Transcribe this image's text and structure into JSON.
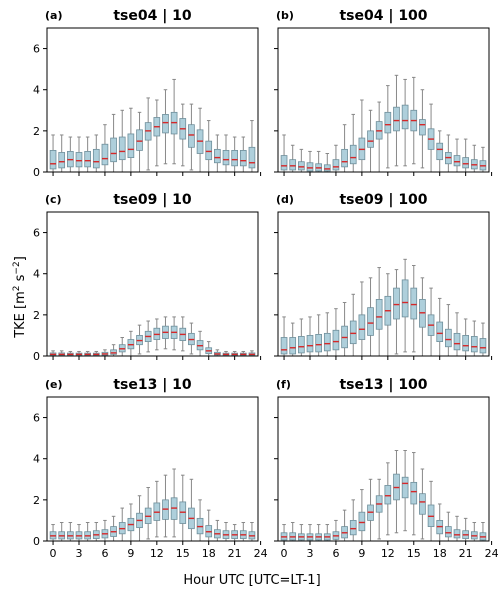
{
  "figure": {
    "ylabel_main": "TKE [m",
    "ylabel_sup1": "2",
    "ylabel_mid": " s",
    "ylabel_sup2": "−2",
    "ylabel_end": "]",
    "xlabel": "Hour UTC [UTC=LT-1]"
  },
  "colors": {
    "box_fill": "#aecfdb",
    "box_edge": "#6f8f9b",
    "median": "#d62728",
    "whisker": "#888888"
  },
  "chart_data": [
    {
      "type": "boxplot",
      "label": "(a)",
      "title": "tse04 | 10",
      "x": [
        0,
        1,
        2,
        3,
        4,
        5,
        6,
        7,
        8,
        9,
        10,
        11,
        12,
        13,
        14,
        15,
        16,
        17,
        18,
        19,
        20,
        21,
        22,
        23
      ],
      "xticks": [
        0,
        3,
        6,
        9,
        12,
        15,
        18,
        21,
        24
      ],
      "yticks": [
        0,
        2,
        4,
        6
      ],
      "ylim": [
        0,
        7
      ],
      "xlim": [
        -0.7,
        23.7
      ],
      "median": [
        0.4,
        0.5,
        0.6,
        0.55,
        0.55,
        0.5,
        0.65,
        0.9,
        1.0,
        1.1,
        1.5,
        2.0,
        2.2,
        2.4,
        2.4,
        2.1,
        1.8,
        1.5,
        1.0,
        0.7,
        0.6,
        0.6,
        0.55,
        0.45
      ],
      "q1": [
        0.15,
        0.2,
        0.25,
        0.25,
        0.25,
        0.2,
        0.35,
        0.5,
        0.6,
        0.7,
        1.05,
        1.55,
        1.75,
        1.9,
        1.85,
        1.6,
        1.2,
        0.9,
        0.6,
        0.45,
        0.35,
        0.3,
        0.3,
        0.2
      ],
      "q3": [
        1.05,
        0.95,
        1.0,
        0.95,
        1.0,
        1.1,
        1.35,
        1.65,
        1.7,
        1.85,
        2.05,
        2.4,
        2.65,
        2.8,
        2.9,
        2.6,
        2.3,
        2.05,
        1.5,
        1.1,
        1.05,
        1.05,
        1.05,
        1.2
      ],
      "whislo": [
        0,
        0,
        0,
        0,
        0,
        0,
        0,
        0,
        0,
        0,
        0,
        0.1,
        0.3,
        0.4,
        0.4,
        0.3,
        0.1,
        0,
        0,
        0,
        0,
        0,
        0,
        0
      ],
      "whishi": [
        1.8,
        1.8,
        1.7,
        1.7,
        1.7,
        1.8,
        2.3,
        2.8,
        3.0,
        3.1,
        2.9,
        3.6,
        3.5,
        4.0,
        4.5,
        3.3,
        3.3,
        3.1,
        2.5,
        1.8,
        1.8,
        1.7,
        1.7,
        2.5
      ]
    },
    {
      "type": "boxplot",
      "label": "(b)",
      "title": "tse04 | 100",
      "x": [
        0,
        1,
        2,
        3,
        4,
        5,
        6,
        7,
        8,
        9,
        10,
        11,
        12,
        13,
        14,
        15,
        16,
        17,
        18,
        19,
        20,
        21,
        22,
        23
      ],
      "xticks": [
        0,
        3,
        6,
        9,
        12,
        15,
        18,
        21,
        24
      ],
      "yticks": [
        0,
        2,
        4,
        6
      ],
      "ylim": [
        0,
        7
      ],
      "xlim": [
        -0.7,
        23.7
      ],
      "median": [
        0.3,
        0.3,
        0.25,
        0.2,
        0.2,
        0.15,
        0.25,
        0.5,
        0.7,
        1.1,
        1.5,
        2.0,
        2.3,
        2.5,
        2.5,
        2.5,
        2.3,
        1.6,
        1.1,
        0.7,
        0.5,
        0.4,
        0.35,
        0.3
      ],
      "q1": [
        0.1,
        0.1,
        0.1,
        0.05,
        0.05,
        0.05,
        0.1,
        0.25,
        0.4,
        0.6,
        1.2,
        1.6,
        1.9,
        2.0,
        2.1,
        2.0,
        1.8,
        1.1,
        0.6,
        0.4,
        0.3,
        0.2,
        0.15,
        0.1
      ],
      "q3": [
        0.8,
        0.6,
        0.5,
        0.45,
        0.4,
        0.35,
        0.6,
        1.1,
        1.3,
        1.65,
        2.0,
        2.45,
        2.9,
        3.15,
        3.25,
        3.0,
        2.55,
        2.1,
        1.4,
        0.95,
        0.8,
        0.7,
        0.6,
        0.55
      ],
      "whislo": [
        0,
        0,
        0,
        0,
        0,
        0,
        0,
        0,
        0,
        0,
        0,
        0,
        0.2,
        0.3,
        0.3,
        0.4,
        0.2,
        0,
        0,
        0,
        0,
        0,
        0,
        0
      ],
      "whishi": [
        1.8,
        1.3,
        1.1,
        1.0,
        1.0,
        0.9,
        1.3,
        2.3,
        2.8,
        3.5,
        3.0,
        3.4,
        4.2,
        4.7,
        4.5,
        4.6,
        4.0,
        3.3,
        2.0,
        1.8,
        1.6,
        1.6,
        1.3,
        1.2
      ]
    },
    {
      "type": "boxplot",
      "label": "(c)",
      "title": "tse09 | 10",
      "x": [
        0,
        1,
        2,
        3,
        4,
        5,
        6,
        7,
        8,
        9,
        10,
        11,
        12,
        13,
        14,
        15,
        16,
        17,
        18,
        19,
        20,
        21,
        22,
        23
      ],
      "xticks": [
        0,
        3,
        6,
        9,
        12,
        15,
        18,
        21,
        24
      ],
      "yticks": [
        0,
        2,
        4,
        6
      ],
      "ylim": [
        0,
        7
      ],
      "xlim": [
        -0.7,
        23.7
      ],
      "median": [
        0.08,
        0.08,
        0.08,
        0.08,
        0.08,
        0.08,
        0.1,
        0.15,
        0.35,
        0.55,
        0.75,
        0.95,
        1.05,
        1.15,
        1.15,
        1.05,
        0.8,
        0.5,
        0.25,
        0.1,
        0.08,
        0.08,
        0.08,
        0.08
      ],
      "q1": [
        0.03,
        0.03,
        0.03,
        0.03,
        0.03,
        0.03,
        0.04,
        0.08,
        0.2,
        0.35,
        0.55,
        0.7,
        0.8,
        0.85,
        0.85,
        0.75,
        0.55,
        0.3,
        0.12,
        0.05,
        0.03,
        0.03,
        0.03,
        0.03
      ],
      "q3": [
        0.15,
        0.15,
        0.14,
        0.14,
        0.14,
        0.14,
        0.18,
        0.3,
        0.55,
        0.8,
        1.0,
        1.2,
        1.35,
        1.45,
        1.45,
        1.35,
        1.1,
        0.75,
        0.4,
        0.18,
        0.14,
        0.14,
        0.14,
        0.15
      ],
      "whislo": [
        0,
        0,
        0,
        0,
        0,
        0,
        0,
        0,
        0,
        0,
        0.1,
        0.2,
        0.3,
        0.35,
        0.3,
        0.25,
        0.1,
        0,
        0,
        0,
        0,
        0,
        0,
        0
      ],
      "whishi": [
        0.25,
        0.25,
        0.22,
        0.22,
        0.22,
        0.22,
        0.3,
        0.55,
        0.9,
        1.2,
        1.5,
        1.7,
        1.8,
        1.9,
        1.9,
        1.9,
        1.6,
        1.2,
        0.7,
        0.3,
        0.22,
        0.22,
        0.22,
        0.25
      ]
    },
    {
      "type": "boxplot",
      "label": "(d)",
      "title": "tse09 | 100",
      "x": [
        0,
        1,
        2,
        3,
        4,
        5,
        6,
        7,
        8,
        9,
        10,
        11,
        12,
        13,
        14,
        15,
        16,
        17,
        18,
        19,
        20,
        21,
        22,
        23
      ],
      "xticks": [
        0,
        3,
        6,
        9,
        12,
        15,
        18,
        21,
        24
      ],
      "yticks": [
        0,
        2,
        4,
        6
      ],
      "ylim": [
        0,
        7
      ],
      "xlim": [
        -0.7,
        23.7
      ],
      "median": [
        0.3,
        0.4,
        0.45,
        0.5,
        0.55,
        0.6,
        0.7,
        0.9,
        1.1,
        1.3,
        1.6,
        1.9,
        2.2,
        2.5,
        2.6,
        2.5,
        2.1,
        1.5,
        1.1,
        0.8,
        0.6,
        0.5,
        0.45,
        0.4
      ],
      "q1": [
        0.1,
        0.1,
        0.15,
        0.2,
        0.2,
        0.25,
        0.3,
        0.4,
        0.6,
        0.8,
        1.0,
        1.3,
        1.5,
        1.8,
        1.9,
        1.8,
        1.4,
        1.0,
        0.7,
        0.45,
        0.3,
        0.25,
        0.2,
        0.15
      ],
      "q3": [
        0.9,
        0.9,
        0.95,
        1.0,
        1.05,
        1.1,
        1.25,
        1.45,
        1.7,
        2.0,
        2.35,
        2.75,
        2.9,
        3.3,
        3.7,
        3.3,
        2.75,
        2.0,
        1.65,
        1.3,
        1.1,
        1.0,
        0.95,
        0.85
      ],
      "whislo": [
        0,
        0,
        0,
        0,
        0,
        0,
        0,
        0,
        0,
        0,
        0,
        0,
        0,
        0.1,
        0.2,
        0.2,
        0,
        0,
        0,
        0,
        0,
        0,
        0,
        0
      ],
      "whishi": [
        1.9,
        1.6,
        1.8,
        1.9,
        2.0,
        2.1,
        2.3,
        2.6,
        3.0,
        3.6,
        3.8,
        4.3,
        4.0,
        4.2,
        4.7,
        4.4,
        3.8,
        3.3,
        2.8,
        2.5,
        2.1,
        1.8,
        1.7,
        1.6
      ]
    },
    {
      "type": "boxplot",
      "label": "(e)",
      "title": "tse13 | 10",
      "x": [
        0,
        1,
        2,
        3,
        4,
        5,
        6,
        7,
        8,
        9,
        10,
        11,
        12,
        13,
        14,
        15,
        16,
        17,
        18,
        19,
        20,
        21,
        22,
        23
      ],
      "xticks": [
        0,
        3,
        6,
        9,
        12,
        15,
        18,
        21,
        24
      ],
      "yticks": [
        0,
        2,
        4,
        6
      ],
      "ylim": [
        0,
        7
      ],
      "xlim": [
        -0.7,
        23.7
      ],
      "median": [
        0.25,
        0.25,
        0.25,
        0.25,
        0.25,
        0.3,
        0.35,
        0.45,
        0.6,
        0.8,
        1.0,
        1.2,
        1.4,
        1.55,
        1.6,
        1.4,
        1.1,
        0.7,
        0.45,
        0.35,
        0.3,
        0.3,
        0.3,
        0.25
      ],
      "q1": [
        0.1,
        0.1,
        0.1,
        0.1,
        0.1,
        0.12,
        0.15,
        0.22,
        0.35,
        0.5,
        0.65,
        0.85,
        1.0,
        1.05,
        1.05,
        0.85,
        0.6,
        0.35,
        0.2,
        0.15,
        0.12,
        0.12,
        0.12,
        0.1
      ],
      "q3": [
        0.45,
        0.45,
        0.45,
        0.45,
        0.45,
        0.5,
        0.55,
        0.7,
        0.9,
        1.1,
        1.35,
        1.6,
        1.85,
        2.0,
        2.1,
        1.9,
        1.6,
        1.1,
        0.75,
        0.55,
        0.5,
        0.5,
        0.5,
        0.45
      ],
      "whislo": [
        0,
        0,
        0,
        0,
        0,
        0,
        0,
        0,
        0,
        0,
        0,
        0.1,
        0.2,
        0.2,
        0.2,
        0,
        0,
        0,
        0,
        0,
        0,
        0,
        0,
        0
      ],
      "whishi": [
        0.8,
        0.9,
        0.9,
        0.8,
        0.9,
        0.9,
        1.0,
        1.2,
        1.6,
        1.8,
        2.2,
        2.6,
        2.9,
        3.2,
        3.5,
        3.2,
        3.0,
        2.0,
        1.5,
        1.0,
        0.9,
        0.8,
        0.9,
        0.9
      ]
    },
    {
      "type": "boxplot",
      "label": "(f)",
      "title": "tse13 | 100",
      "x": [
        0,
        1,
        2,
        3,
        4,
        5,
        6,
        7,
        8,
        9,
        10,
        11,
        12,
        13,
        14,
        15,
        16,
        17,
        18,
        19,
        20,
        21,
        22,
        23
      ],
      "xticks": [
        0,
        3,
        6,
        9,
        12,
        15,
        18,
        21,
        24
      ],
      "yticks": [
        0,
        2,
        4,
        6
      ],
      "ylim": [
        0,
        7
      ],
      "xlim": [
        -0.7,
        23.7
      ],
      "median": [
        0.2,
        0.2,
        0.2,
        0.2,
        0.2,
        0.2,
        0.25,
        0.4,
        0.6,
        0.9,
        1.4,
        1.8,
        2.2,
        2.6,
        2.8,
        2.4,
        1.9,
        1.2,
        0.7,
        0.4,
        0.3,
        0.3,
        0.25,
        0.2
      ],
      "q1": [
        0.05,
        0.05,
        0.05,
        0.05,
        0.05,
        0.05,
        0.08,
        0.15,
        0.3,
        0.5,
        1.0,
        1.4,
        1.8,
        2.0,
        2.1,
        1.8,
        1.3,
        0.7,
        0.35,
        0.2,
        0.15,
        0.12,
        0.1,
        0.05
      ],
      "q3": [
        0.4,
        0.4,
        0.35,
        0.35,
        0.35,
        0.35,
        0.45,
        0.7,
        1.0,
        1.4,
        1.75,
        2.2,
        2.7,
        3.25,
        3.1,
        2.85,
        2.3,
        1.75,
        1.0,
        0.7,
        0.55,
        0.5,
        0.45,
        0.4
      ],
      "whislo": [
        0,
        0,
        0,
        0,
        0,
        0,
        0,
        0,
        0,
        0,
        0,
        0.1,
        0.3,
        0.4,
        0.5,
        0.3,
        0.1,
        0,
        0,
        0,
        0,
        0,
        0,
        0
      ],
      "whishi": [
        0.8,
        0.9,
        0.8,
        0.8,
        0.8,
        0.8,
        1.0,
        1.5,
        2.0,
        2.5,
        3.0,
        3.0,
        3.8,
        4.4,
        4.4,
        4.3,
        3.5,
        2.9,
        1.8,
        1.4,
        1.2,
        1.1,
        0.9,
        0.9
      ]
    }
  ]
}
